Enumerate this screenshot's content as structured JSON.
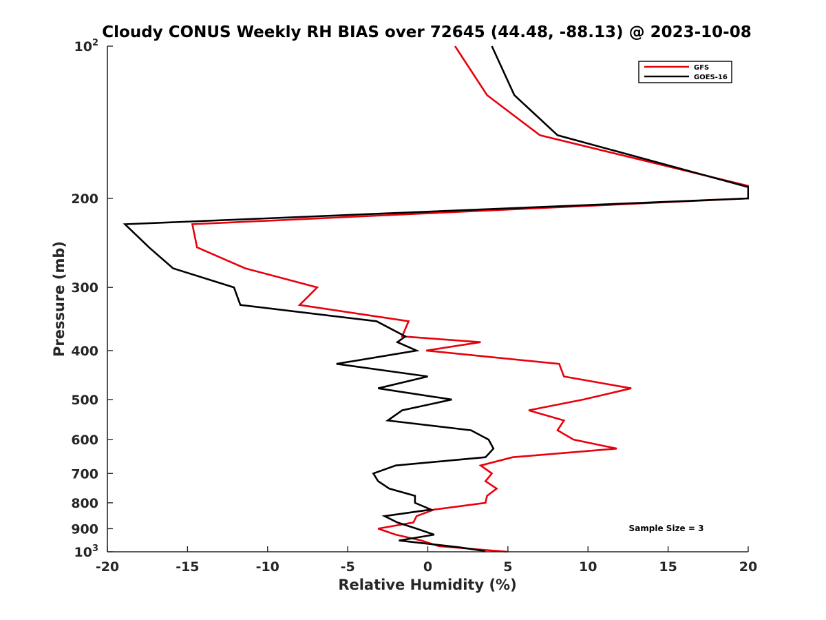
{
  "chart_data": {
    "type": "line",
    "title": "Cloudy CONUS Weekly RH BIAS over 72645 (44.48, -88.13) @ 2023-10-08",
    "xlabel": "Relative Humidity (%)",
    "ylabel": "Pressure (mb)",
    "xlim": [
      -20,
      20
    ],
    "ylim": [
      100,
      1000
    ],
    "y_scale": "log",
    "y_reversed": true,
    "x_ticks": [
      {
        "value": -20,
        "label": "-20"
      },
      {
        "value": -15,
        "label": "-15"
      },
      {
        "value": -10,
        "label": "-10"
      },
      {
        "value": -5,
        "label": "-5"
      },
      {
        "value": 0,
        "label": "0"
      },
      {
        "value": 5,
        "label": "5"
      },
      {
        "value": 10,
        "label": "10"
      },
      {
        "value": 15,
        "label": "15"
      },
      {
        "value": 20,
        "label": "20"
      }
    ],
    "y_ticks": [
      {
        "value": 100,
        "label": "10",
        "sup": "2"
      },
      {
        "value": 200,
        "label": "200",
        "sup": ""
      },
      {
        "value": 300,
        "label": "300",
        "sup": ""
      },
      {
        "value": 400,
        "label": "400",
        "sup": ""
      },
      {
        "value": 500,
        "label": "500",
        "sup": ""
      },
      {
        "value": 600,
        "label": "600",
        "sup": ""
      },
      {
        "value": 700,
        "label": "700",
        "sup": ""
      },
      {
        "value": 800,
        "label": "800",
        "sup": ""
      },
      {
        "value": 900,
        "label": "900",
        "sup": ""
      },
      {
        "value": 1000,
        "label": "10",
        "sup": "3"
      }
    ],
    "grid": false,
    "legend_position": "top-right",
    "annotation": "Sample Size = 3",
    "series": [
      {
        "name": "GFS",
        "color": "#e8000b",
        "points": [
          [
            1.7,
            100
          ],
          [
            3.7,
            125
          ],
          [
            7.0,
            150
          ],
          [
            20.0,
            189
          ],
          [
            20.0,
            200
          ],
          [
            -14.7,
            225
          ],
          [
            -14.4,
            250
          ],
          [
            -11.4,
            275
          ],
          [
            -6.9,
            300
          ],
          [
            -8.0,
            325
          ],
          [
            -1.2,
            350
          ],
          [
            -1.6,
            375
          ],
          [
            3.3,
            385
          ],
          [
            -0.1,
            400
          ],
          [
            8.2,
            425
          ],
          [
            8.5,
            450
          ],
          [
            12.7,
            475
          ],
          [
            9.7,
            500
          ],
          [
            6.3,
            525
          ],
          [
            8.5,
            550
          ],
          [
            8.1,
            575
          ],
          [
            9.1,
            600
          ],
          [
            11.8,
            625
          ],
          [
            5.3,
            650
          ],
          [
            3.3,
            675
          ],
          [
            4.0,
            700
          ],
          [
            3.6,
            725
          ],
          [
            4.3,
            750
          ],
          [
            3.7,
            775
          ],
          [
            3.6,
            800
          ],
          [
            0.4,
            825
          ],
          [
            -0.7,
            850
          ],
          [
            -0.9,
            875
          ],
          [
            -3.1,
            900
          ],
          [
            -2.0,
            925
          ],
          [
            -0.4,
            950
          ],
          [
            0.7,
            975
          ],
          [
            5.0,
            1000
          ]
        ]
      },
      {
        "name": "GOES-16",
        "color": "#000000",
        "points": [
          [
            4.0,
            100
          ],
          [
            5.4,
            125
          ],
          [
            8.1,
            150
          ],
          [
            20.0,
            190
          ],
          [
            20.0,
            200
          ],
          [
            -18.9,
            225
          ],
          [
            -17.4,
            250
          ],
          [
            -15.9,
            275
          ],
          [
            -12.1,
            300
          ],
          [
            -11.7,
            325
          ],
          [
            -3.2,
            350
          ],
          [
            -1.4,
            375
          ],
          [
            -1.9,
            385
          ],
          [
            -0.7,
            400
          ],
          [
            -5.7,
            425
          ],
          [
            0.0,
            450
          ],
          [
            -3.1,
            475
          ],
          [
            1.5,
            500
          ],
          [
            -1.6,
            525
          ],
          [
            -2.5,
            550
          ],
          [
            2.7,
            575
          ],
          [
            3.8,
            600
          ],
          [
            4.1,
            625
          ],
          [
            3.6,
            650
          ],
          [
            -2.0,
            675
          ],
          [
            -3.4,
            700
          ],
          [
            -3.1,
            725
          ],
          [
            -2.4,
            750
          ],
          [
            -0.8,
            775
          ],
          [
            -0.8,
            800
          ],
          [
            0.2,
            825
          ],
          [
            -2.7,
            850
          ],
          [
            -1.9,
            875
          ],
          [
            -0.7,
            900
          ],
          [
            0.4,
            925
          ],
          [
            -1.8,
            950
          ],
          [
            0.1,
            965
          ],
          [
            2.0,
            980
          ],
          [
            3.4,
            995
          ],
          [
            3.6,
            1000
          ]
        ]
      }
    ]
  }
}
